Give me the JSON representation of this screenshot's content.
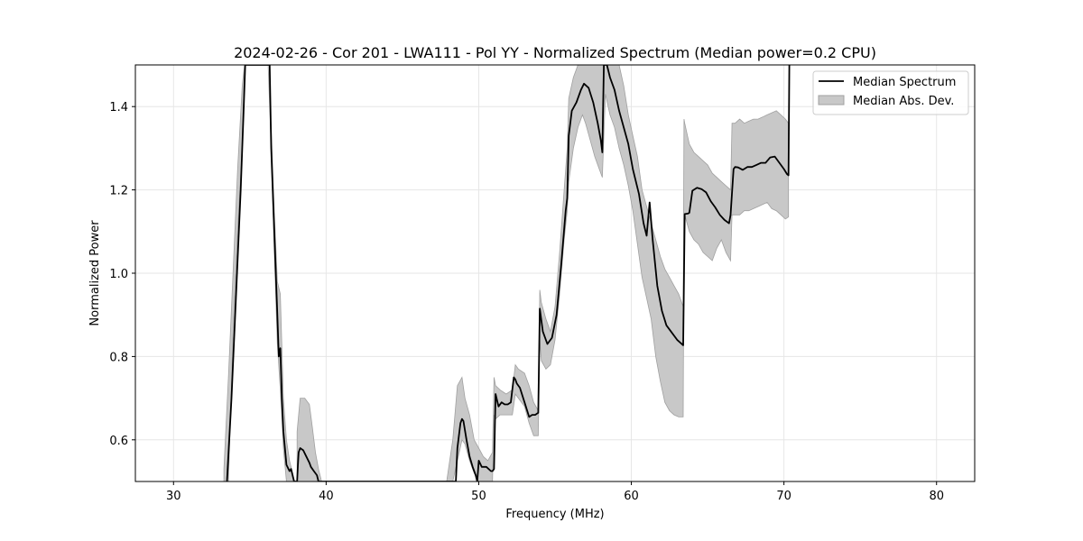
{
  "chart_data": {
    "type": "line",
    "title": "2024-02-26 - Cor 201 - LWA111 - Pol YY - Normalized Spectrum (Median power=0.2 CPU)",
    "xlabel": "Frequency (MHz)",
    "ylabel": "Normalized Power",
    "xlim": [
      27.5,
      82.5
    ],
    "ylim": [
      0.5,
      1.5
    ],
    "xticks": [
      30,
      40,
      50,
      60,
      70,
      80
    ],
    "xtick_labels": [
      "30",
      "40",
      "50",
      "60",
      "70",
      "80"
    ],
    "yticks": [
      0.6,
      0.8,
      1.0,
      1.2,
      1.4
    ],
    "ytick_labels": [
      "0.6",
      "0.8",
      "1.0",
      "1.2",
      "1.4"
    ],
    "grid": true,
    "legend_position": "top-right",
    "colors": {
      "line": "#000000",
      "band": "#c8c8c8",
      "band_edge": "#a0a0a0",
      "grid": "#e6e6e6"
    },
    "series": [
      {
        "name": "Median Spectrum",
        "kind": "line",
        "x": [
          33.5,
          33.8,
          34.1,
          34.4,
          34.6,
          34.7,
          36.3,
          36.4,
          36.6,
          36.8,
          36.9,
          37.0,
          37.1,
          37.2,
          37.4,
          37.6,
          37.7,
          37.9,
          38.0,
          38.1,
          38.15,
          38.2,
          38.3,
          38.5,
          38.7,
          38.9,
          39.0,
          39.2,
          39.4,
          39.5,
          48.5,
          48.6,
          48.8,
          48.9,
          49.0,
          49.2,
          49.4,
          49.6,
          49.8,
          49.9,
          50.0,
          50.2,
          50.5,
          50.8,
          50.9,
          51.0,
          51.1,
          51.3,
          51.5,
          51.7,
          51.9,
          52.1,
          52.3,
          52.4,
          52.5,
          52.7,
          53.0,
          53.3,
          53.5,
          53.7,
          53.9,
          54.0,
          54.2,
          54.5,
          54.8,
          55.1,
          55.4,
          55.7,
          55.8,
          55.9,
          56.1,
          56.4,
          56.7,
          56.9,
          57.2,
          57.5,
          57.8,
          58.0,
          58.1,
          58.2,
          58.4,
          58.6,
          58.9,
          59.2,
          59.5,
          59.8,
          60.1,
          60.5,
          60.8,
          61.0,
          61.2,
          61.4,
          61.7,
          62.0,
          62.3,
          62.6,
          63.0,
          63.4,
          63.5,
          63.7,
          63.8,
          64.0,
          64.3,
          64.6,
          64.9,
          65.2,
          65.5,
          65.8,
          66.1,
          66.4,
          66.5,
          66.7,
          66.8,
          67.0,
          67.3,
          67.6,
          67.9,
          68.2,
          68.5,
          68.8,
          69.1,
          69.4,
          69.7,
          70.0,
          70.2,
          70.3,
          70.35
        ],
        "y": [
          0.5,
          0.7,
          0.95,
          1.2,
          1.4,
          1.5,
          1.5,
          1.3,
          1.1,
          0.9,
          0.8,
          0.82,
          0.7,
          0.62,
          0.54,
          0.525,
          0.53,
          0.5,
          0.5,
          0.5,
          0.54,
          0.57,
          0.58,
          0.575,
          0.56,
          0.545,
          0.535,
          0.525,
          0.515,
          0.5,
          0.5,
          0.58,
          0.64,
          0.65,
          0.645,
          0.6,
          0.56,
          0.535,
          0.515,
          0.5,
          0.55,
          0.535,
          0.535,
          0.525,
          0.525,
          0.53,
          0.71,
          0.68,
          0.69,
          0.685,
          0.685,
          0.69,
          0.75,
          0.745,
          0.735,
          0.725,
          0.69,
          0.655,
          0.66,
          0.66,
          0.665,
          0.915,
          0.86,
          0.83,
          0.845,
          0.9,
          1.02,
          1.15,
          1.18,
          1.33,
          1.39,
          1.41,
          1.44,
          1.455,
          1.445,
          1.41,
          1.36,
          1.32,
          1.29,
          1.5,
          1.5,
          1.47,
          1.44,
          1.39,
          1.35,
          1.31,
          1.25,
          1.19,
          1.12,
          1.09,
          1.17,
          1.08,
          0.97,
          0.91,
          0.875,
          0.86,
          0.84,
          0.827,
          1.142,
          1.143,
          1.145,
          1.198,
          1.205,
          1.202,
          1.194,
          1.173,
          1.158,
          1.14,
          1.128,
          1.12,
          1.14,
          1.25,
          1.255,
          1.254,
          1.248,
          1.255,
          1.255,
          1.26,
          1.265,
          1.265,
          1.278,
          1.28,
          1.265,
          1.25,
          1.238,
          1.235,
          1.5
        ]
      },
      {
        "name": "Median Abs. Dev.",
        "kind": "band",
        "segments": [
          {
            "x": [
              33.3,
              33.6,
              33.9,
              34.2,
              34.5,
              34.65,
              36.2,
              36.4,
              36.6,
              36.8,
              37.0,
              37.2,
              37.4,
              37.6,
              37.8,
              37.9
            ],
            "upper": [
              0.53,
              0.75,
              1.0,
              1.25,
              1.45,
              1.5,
              1.5,
              1.35,
              1.15,
              0.98,
              0.95,
              0.7,
              0.6,
              0.55,
              0.52,
              0.5
            ],
            "lower": [
              0.5,
              0.5,
              0.85,
              1.1,
              1.3,
              1.5,
              1.5,
              1.3,
              1.05,
              0.83,
              0.72,
              0.58,
              0.5,
              0.5,
              0.5,
              0.5
            ]
          },
          {
            "x": [
              38.1,
              38.3,
              38.6,
              38.9,
              39.1,
              39.3,
              39.5,
              39.7
            ],
            "upper": [
              0.62,
              0.7,
              0.7,
              0.685,
              0.63,
              0.57,
              0.53,
              0.5
            ],
            "lower": [
              0.5,
              0.5,
              0.5,
              0.5,
              0.5,
              0.5,
              0.5,
              0.5
            ]
          },
          {
            "x": [
              47.9,
              48.3,
              48.6,
              48.9,
              49.1,
              49.4,
              49.7,
              50.0,
              50.3,
              50.6,
              50.9,
              51.0,
              51.1,
              51.4,
              51.8,
              52.2,
              52.4,
              52.6,
              53.0,
              53.3,
              53.6,
              53.9,
              54.0,
              54.1,
              54.4,
              54.7,
              55.0,
              55.3,
              55.6,
              55.8,
              55.9,
              56.2,
              56.5,
              56.8,
              57.0,
              57.3,
              57.6,
              57.9,
              58.1,
              58.3,
              58.6,
              58.9,
              59.2,
              59.5,
              59.8,
              60.1,
              60.4,
              60.7,
              61.0,
              61.3,
              61.6,
              61.9,
              62.2,
              62.5,
              62.8,
              63.1,
              63.4,
              63.45,
              63.5,
              63.8,
              64.1,
              64.4,
              64.7,
              65.0,
              65.3,
              65.6,
              65.9,
              66.2,
              66.5,
              66.6,
              66.8,
              67.1,
              67.4,
              67.7,
              68.0,
              68.3,
              68.6,
              68.9,
              69.2,
              69.5,
              69.8,
              70.1,
              70.3
            ],
            "upper": [
              0.5,
              0.6,
              0.73,
              0.75,
              0.7,
              0.66,
              0.6,
              0.58,
              0.56,
              0.55,
              0.57,
              0.75,
              0.73,
              0.72,
              0.71,
              0.72,
              0.78,
              0.77,
              0.76,
              0.73,
              0.69,
              0.67,
              0.96,
              0.93,
              0.89,
              0.86,
              0.92,
              1.05,
              1.2,
              1.3,
              1.42,
              1.47,
              1.5,
              1.5,
              1.5,
              1.5,
              1.5,
              1.5,
              1.5,
              1.5,
              1.5,
              1.5,
              1.5,
              1.45,
              1.38,
              1.33,
              1.28,
              1.2,
              1.16,
              1.12,
              1.08,
              1.04,
              1.01,
              0.99,
              0.97,
              0.95,
              0.92,
              1.37,
              1.36,
              1.31,
              1.29,
              1.28,
              1.27,
              1.26,
              1.24,
              1.23,
              1.22,
              1.21,
              1.2,
              1.36,
              1.36,
              1.37,
              1.36,
              1.365,
              1.37,
              1.37,
              1.375,
              1.38,
              1.385,
              1.39,
              1.38,
              1.37,
              1.36
            ],
            "lower": [
              0.5,
              0.5,
              0.55,
              0.6,
              0.59,
              0.55,
              0.52,
              0.5,
              0.5,
              0.5,
              0.5,
              0.66,
              0.65,
              0.66,
              0.66,
              0.66,
              0.71,
              0.7,
              0.68,
              0.64,
              0.61,
              0.61,
              0.84,
              0.79,
              0.77,
              0.78,
              0.84,
              0.95,
              1.08,
              1.15,
              1.22,
              1.3,
              1.35,
              1.38,
              1.36,
              1.32,
              1.28,
              1.25,
              1.23,
              1.43,
              1.38,
              1.35,
              1.3,
              1.26,
              1.21,
              1.15,
              1.07,
              0.99,
              0.94,
              0.89,
              0.8,
              0.74,
              0.69,
              0.67,
              0.66,
              0.655,
              0.655,
              1.14,
              1.14,
              1.1,
              1.08,
              1.07,
              1.05,
              1.04,
              1.03,
              1.06,
              1.08,
              1.05,
              1.03,
              1.14,
              1.14,
              1.14,
              1.15,
              1.15,
              1.155,
              1.16,
              1.165,
              1.17,
              1.155,
              1.15,
              1.14,
              1.13,
              1.135
            ]
          }
        ]
      }
    ]
  }
}
